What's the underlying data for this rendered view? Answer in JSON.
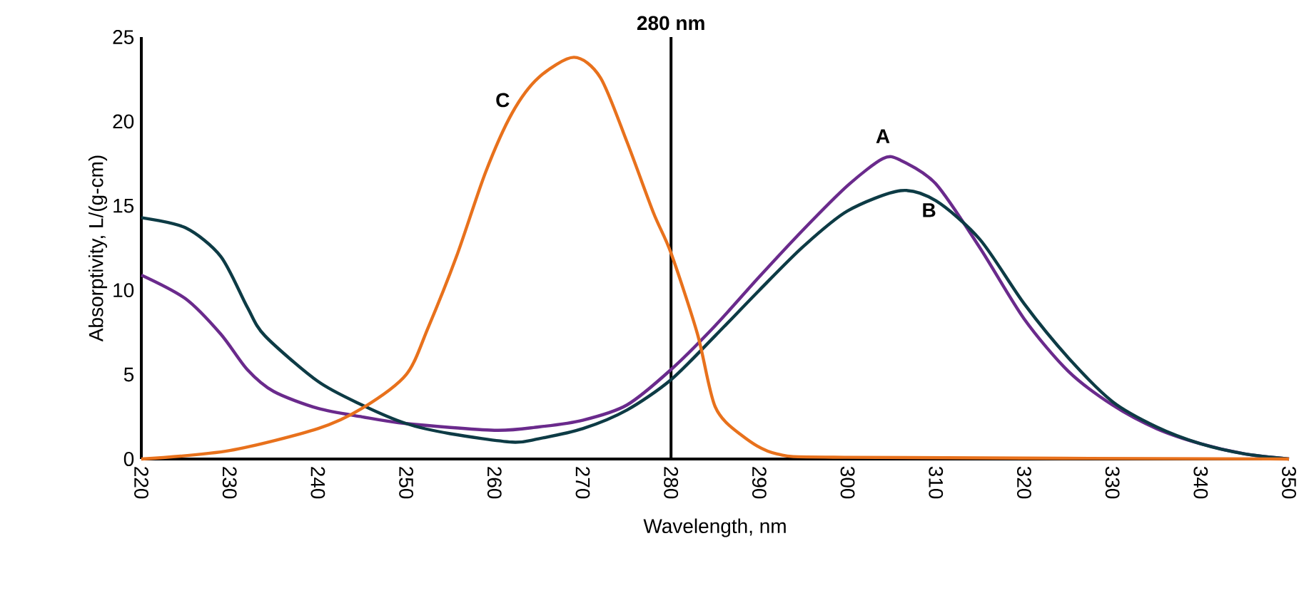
{
  "chart_data": {
    "type": "line",
    "xlabel": "Wavelength, nm",
    "ylabel": "Absorptivity, L/(g-cm)",
    "xlim": [
      220,
      350
    ],
    "ylim": [
      0,
      25
    ],
    "xticks": [
      220,
      230,
      240,
      250,
      260,
      270,
      280,
      290,
      300,
      310,
      320,
      330,
      340,
      350
    ],
    "yticks": [
      0,
      5,
      10,
      15,
      20,
      25
    ],
    "grid": false,
    "marker": "none",
    "line_style": "solid",
    "ref_lines": [
      {
        "axis": "x",
        "value": 280,
        "label": "280 nm",
        "color": "#000000"
      }
    ],
    "series": [
      {
        "name": "A",
        "color": "#6a2a8c",
        "x": [
          220,
          225,
          229,
          232,
          235,
          240,
          245,
          250,
          260,
          265,
          270,
          275,
          280,
          285,
          290,
          295,
          300,
          304,
          306,
          310,
          315,
          320,
          325,
          330,
          335,
          340,
          345,
          350
        ],
        "values": [
          10.9,
          9.5,
          7.4,
          5.3,
          4.0,
          3.0,
          2.5,
          2.1,
          1.7,
          1.9,
          2.3,
          3.2,
          5.3,
          7.9,
          10.8,
          13.6,
          16.2,
          17.8,
          17.7,
          16.3,
          12.5,
          8.3,
          5.2,
          3.2,
          1.8,
          0.9,
          0.3,
          0
        ]
      },
      {
        "name": "B",
        "color": "#0d3b45",
        "x": [
          220,
          225,
          229,
          232,
          234,
          240,
          245,
          250,
          255,
          262,
          265,
          270,
          275,
          280,
          285,
          290,
          295,
          300,
          306,
          310,
          315,
          320,
          325,
          330,
          335,
          340,
          345,
          350
        ],
        "values": [
          14.3,
          13.7,
          12.0,
          9.0,
          7.3,
          4.6,
          3.2,
          2.1,
          1.5,
          1.0,
          1.2,
          1.8,
          2.9,
          4.7,
          7.3,
          10.0,
          12.6,
          14.7,
          15.9,
          15.3,
          13.0,
          9.2,
          6.0,
          3.4,
          1.9,
          0.9,
          0.3,
          0
        ]
      },
      {
        "name": "C",
        "color": "#e8711c",
        "x": [
          220,
          230,
          240,
          245,
          250,
          252.5,
          255.7,
          259,
          262,
          265,
          269,
          272,
          275,
          278,
          280,
          283,
          285,
          288,
          292,
          300,
          350
        ],
        "values": [
          0,
          0.5,
          1.8,
          3.0,
          5.0,
          7.8,
          12.0,
          17.0,
          20.5,
          22.6,
          23.8,
          22.6,
          18.8,
          14.6,
          12.2,
          7.4,
          3.1,
          1.4,
          0.3,
          0.1,
          0
        ]
      }
    ]
  }
}
